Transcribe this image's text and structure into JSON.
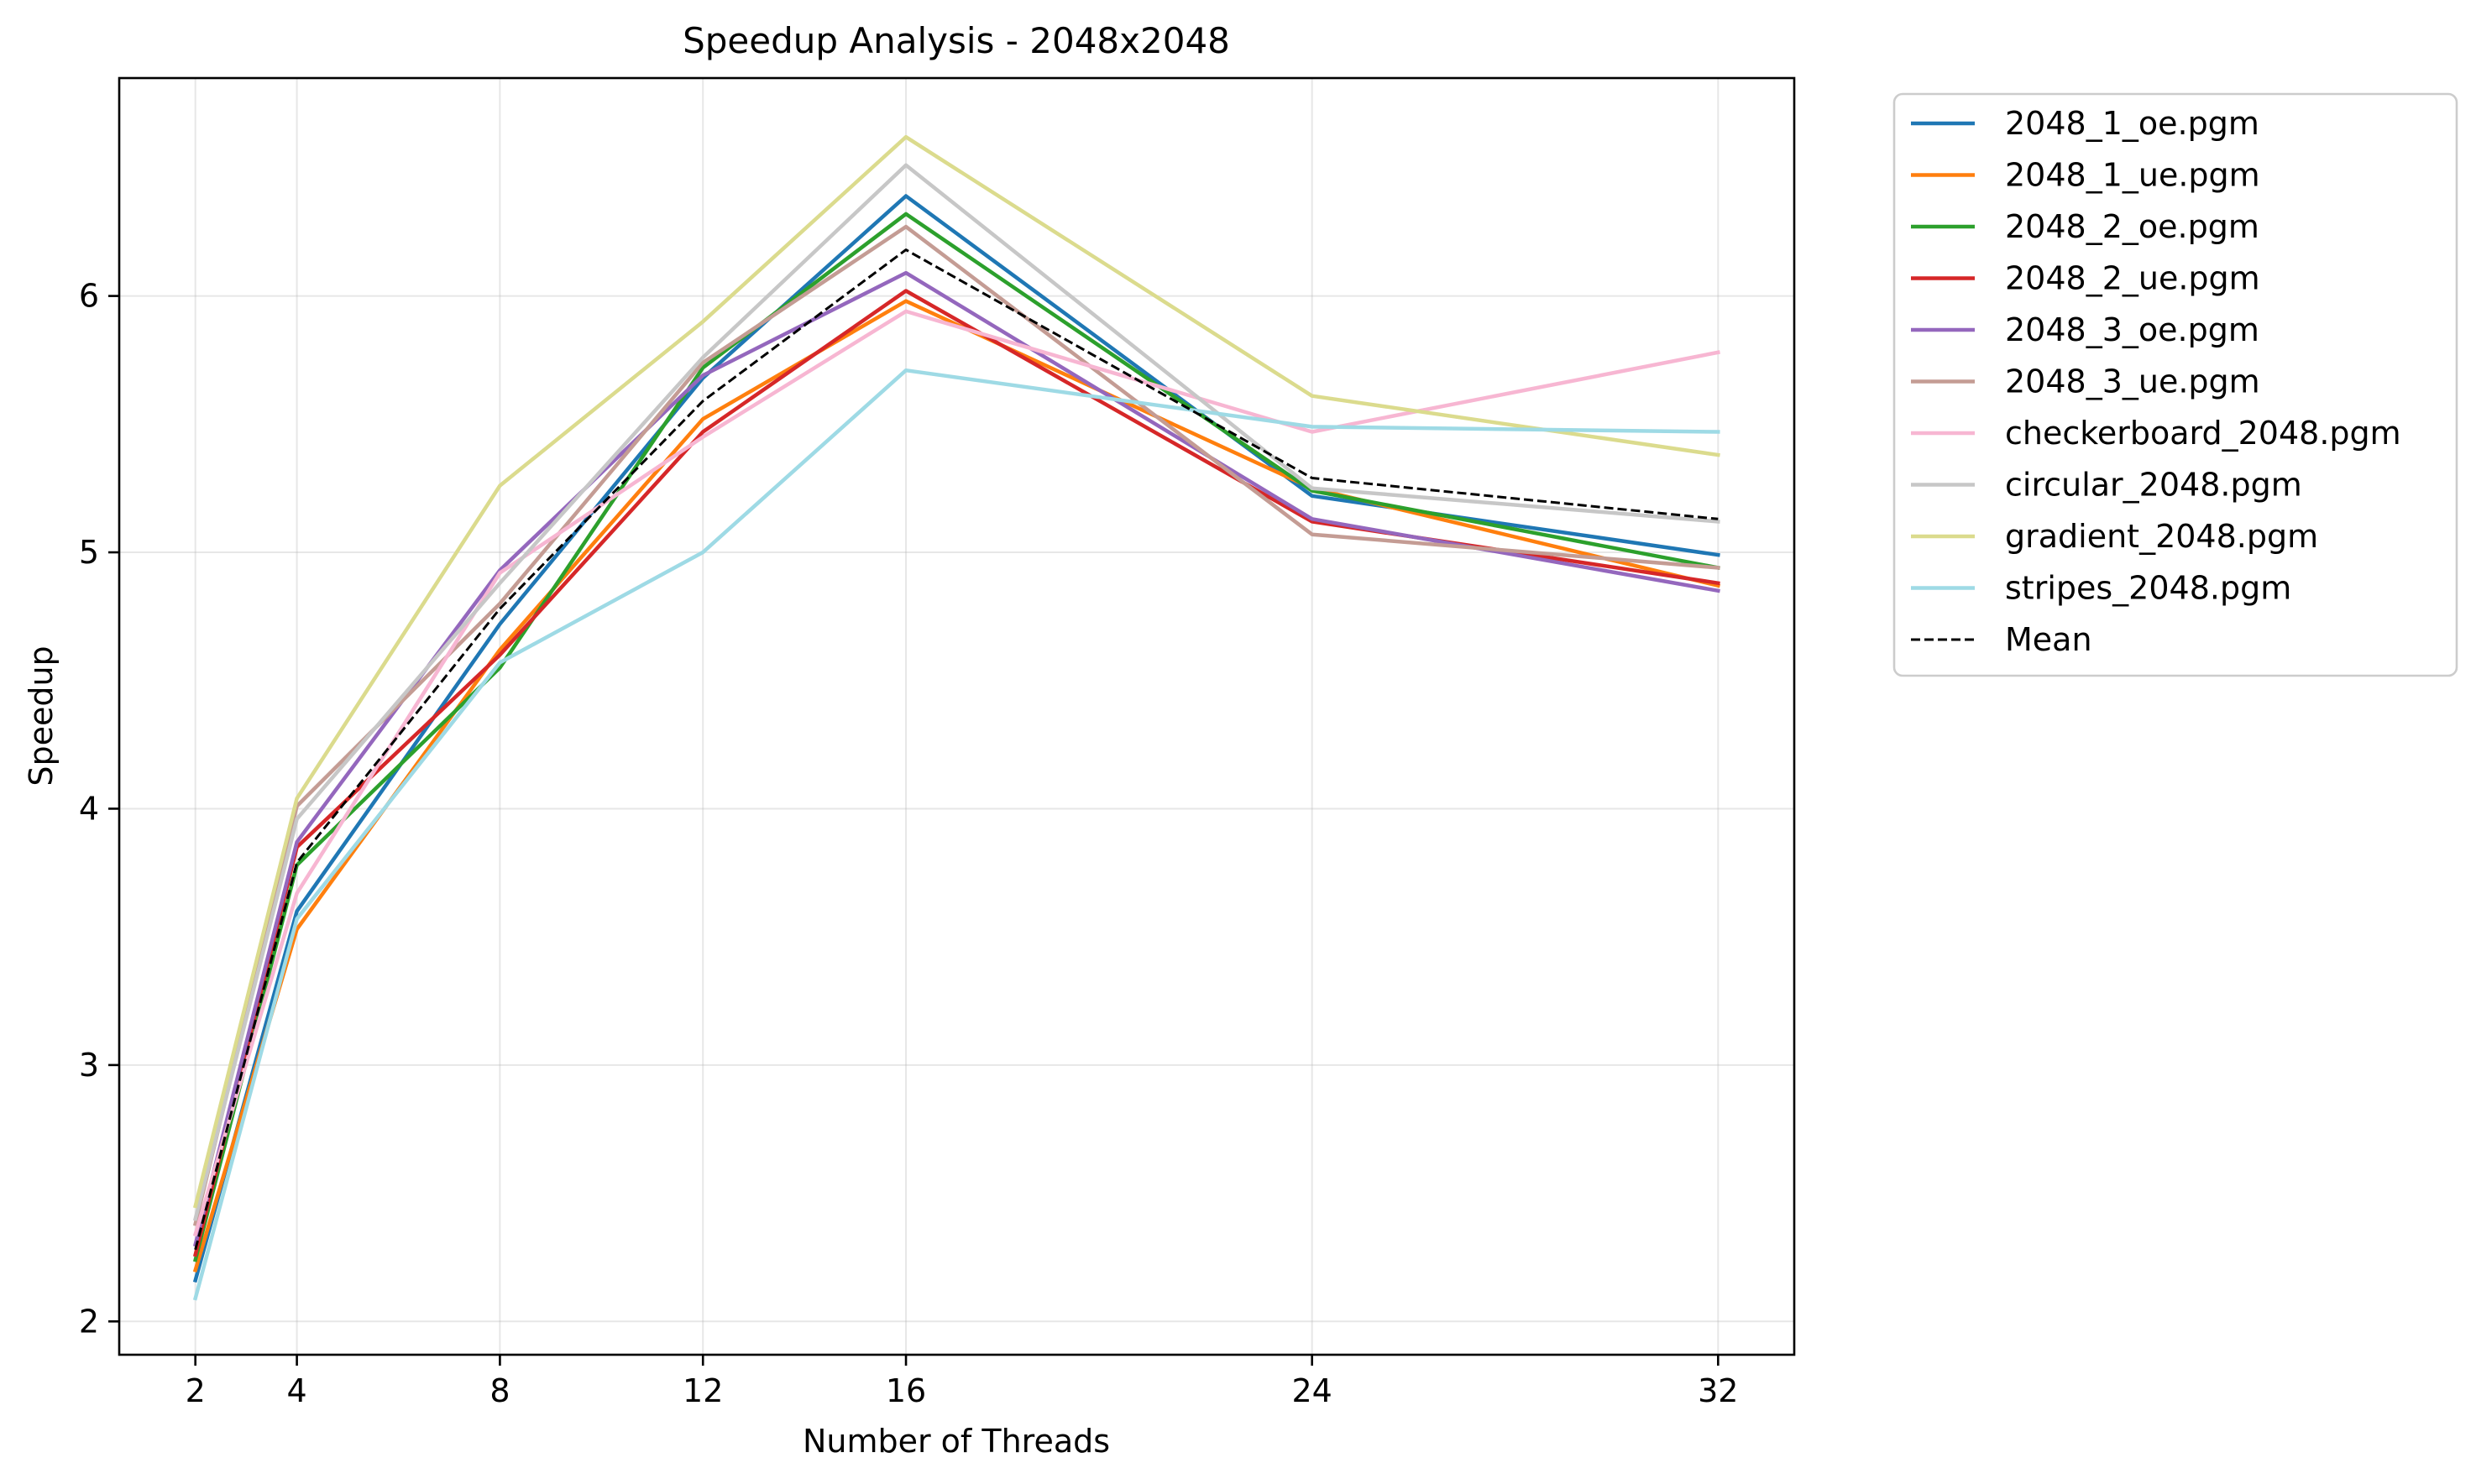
{
  "chart_data": {
    "type": "line",
    "title": "Speedup Analysis - 2048x2048",
    "xlabel": "Number of Threads",
    "ylabel": "Speedup",
    "x": [
      2,
      4,
      8,
      12,
      16,
      24,
      32
    ],
    "xticks": [
      "2",
      "4",
      "8",
      "12",
      "16",
      "24",
      "32"
    ],
    "yticks": [
      "2",
      "3",
      "4",
      "5",
      "6"
    ],
    "xlim": [
      0.5,
      33.5
    ],
    "ylim": [
      1.87,
      6.85
    ],
    "grid": true,
    "legend_position": "outside-top-right",
    "series": [
      {
        "name": "2048_1_oe.pgm",
        "color": "#1f77b4",
        "dash": false,
        "values": [
          2.16,
          3.6,
          4.72,
          5.68,
          6.39,
          5.22,
          4.99
        ]
      },
      {
        "name": "2048_1_ue.pgm",
        "color": "#ff7f0e",
        "dash": false,
        "values": [
          2.2,
          3.53,
          4.62,
          5.52,
          5.98,
          5.25,
          4.87
        ]
      },
      {
        "name": "2048_2_oe.pgm",
        "color": "#2ca02c",
        "dash": false,
        "values": [
          2.24,
          3.78,
          4.55,
          5.72,
          6.32,
          5.24,
          4.94
        ]
      },
      {
        "name": "2048_2_ue.pgm",
        "color": "#d62728",
        "dash": false,
        "values": [
          2.26,
          3.85,
          4.6,
          5.47,
          6.02,
          5.12,
          4.88
        ]
      },
      {
        "name": "2048_3_oe.pgm",
        "color": "#9467bd",
        "dash": false,
        "values": [
          2.3,
          3.87,
          4.93,
          5.69,
          6.09,
          5.13,
          4.85
        ]
      },
      {
        "name": "2048_3_ue.pgm",
        "color": "#c49c94",
        "dash": false,
        "values": [
          2.38,
          4.01,
          4.8,
          5.74,
          6.27,
          5.07,
          4.94
        ]
      },
      {
        "name": "checkerboard_2048.pgm",
        "color": "#f7b6d2",
        "dash": false,
        "values": [
          2.34,
          3.67,
          4.92,
          5.45,
          5.94,
          5.47,
          5.78
        ]
      },
      {
        "name": "circular_2048.pgm",
        "color": "#c7c7c7",
        "dash": false,
        "values": [
          2.4,
          3.96,
          4.88,
          5.76,
          6.51,
          5.25,
          5.12
        ]
      },
      {
        "name": "gradient_2048.pgm",
        "color": "#dbdb8d",
        "dash": false,
        "values": [
          2.45,
          4.04,
          5.26,
          5.9,
          6.62,
          5.61,
          5.38
        ]
      },
      {
        "name": "stripes_2048.pgm",
        "color": "#9edae5",
        "dash": false,
        "values": [
          2.09,
          3.57,
          4.57,
          5.0,
          5.71,
          5.49,
          5.47
        ]
      },
      {
        "name": "Mean",
        "color": "#000000",
        "dash": true,
        "values": [
          2.28,
          3.79,
          4.78,
          5.59,
          6.18,
          5.29,
          5.13
        ]
      }
    ]
  }
}
